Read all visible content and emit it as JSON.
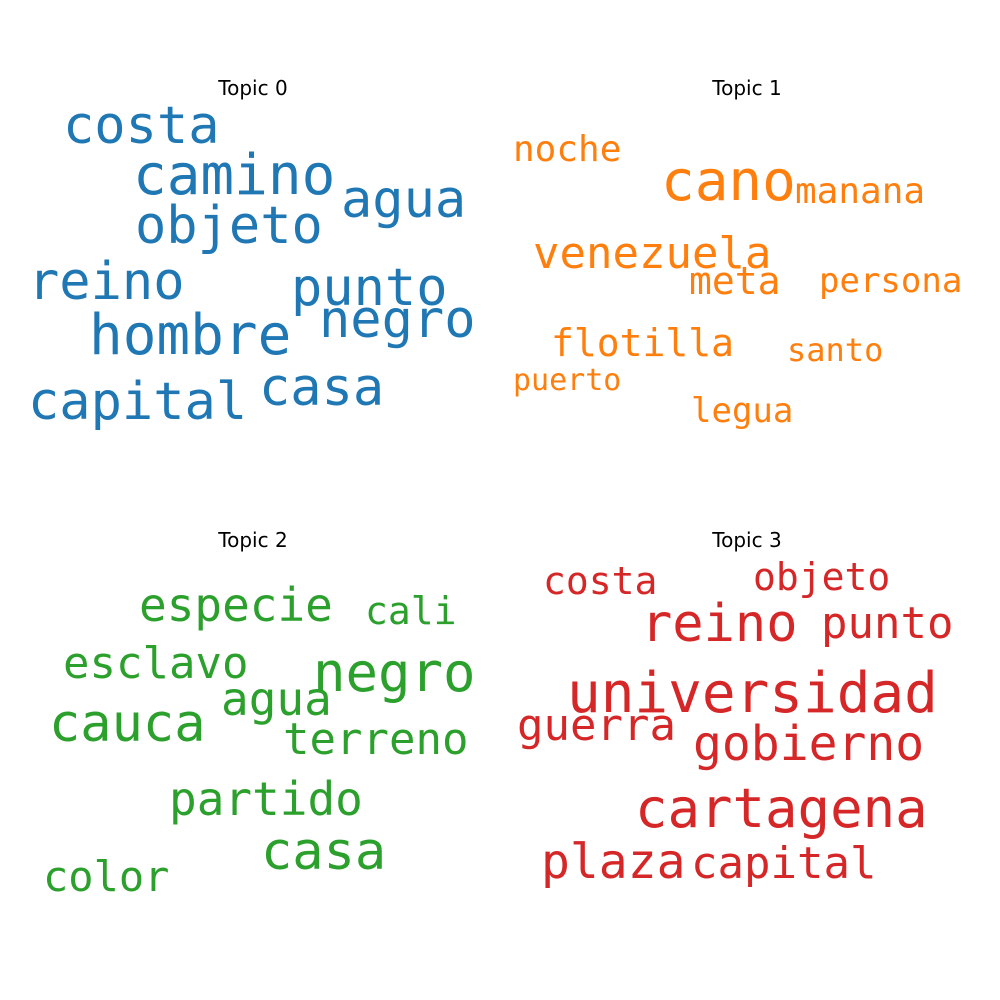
{
  "chart_data": {
    "type": "wordcloud",
    "panels": [
      {
        "title": "Topic 0",
        "color": "#1f77b4",
        "words": [
          "costa",
          "camino",
          "agua",
          "objeto",
          "reino",
          "punto",
          "negro",
          "hombre",
          "capital",
          "casa"
        ]
      },
      {
        "title": "Topic 1",
        "color": "#ff7f0e",
        "words": [
          "noche",
          "cano",
          "manana",
          "venezuela",
          "meta",
          "persona",
          "flotilla",
          "santo",
          "puerto",
          "legua"
        ]
      },
      {
        "title": "Topic 2",
        "color": "#2ca02c",
        "words": [
          "especie",
          "cali",
          "esclavo",
          "negro",
          "agua",
          "cauca",
          "terreno",
          "partido",
          "casa",
          "color"
        ]
      },
      {
        "title": "Topic 3",
        "color": "#d62728",
        "words": [
          "costa",
          "objeto",
          "reino",
          "punto",
          "universidad",
          "guerra",
          "gobierno",
          "cartagena",
          "plaza",
          "capital"
        ]
      }
    ]
  }
}
